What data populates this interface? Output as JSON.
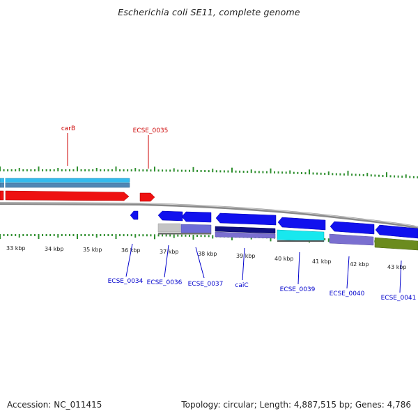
{
  "title": "Escherichia coli SE11, complete genome",
  "footer": {
    "accession": "Accession: NC_011415",
    "topology": "Topology: circular; Length: 4,887,515 bp; Genes: 4,786"
  },
  "colors": {
    "tick": "#2f8f2f",
    "backbone": "#8a8a8a",
    "label_red": "#cc0000",
    "label_blue": "#0000cc"
  },
  "scale_labels": [
    "33 kbp",
    "34 kbp",
    "35 kbp",
    "36 kbp",
    "37 kbp",
    "38 kbp",
    "39 kbp",
    "40 kbp",
    "41 kbp",
    "42 kbp",
    "43 kbp"
  ],
  "genes": [
    {
      "label": "carB",
      "color": "red",
      "strand": "forward"
    },
    {
      "label": "ECSE_0035",
      "color": "red",
      "strand": "forward"
    },
    {
      "label": "ECSE_0034",
      "color": "blue",
      "strand": "reverse"
    },
    {
      "label": "ECSE_0036",
      "color": "blue",
      "strand": "reverse"
    },
    {
      "label": "ECSE_0037",
      "color": "blue",
      "strand": "reverse"
    },
    {
      "label": "caiC",
      "color": "blue",
      "strand": "reverse"
    },
    {
      "label": "ECSE_0039",
      "color": "blue",
      "strand": "reverse"
    },
    {
      "label": "ECSE_0040",
      "color": "blue",
      "strand": "reverse"
    },
    {
      "label": "ECSE_0041",
      "color": "blue",
      "strand": "reverse"
    }
  ]
}
